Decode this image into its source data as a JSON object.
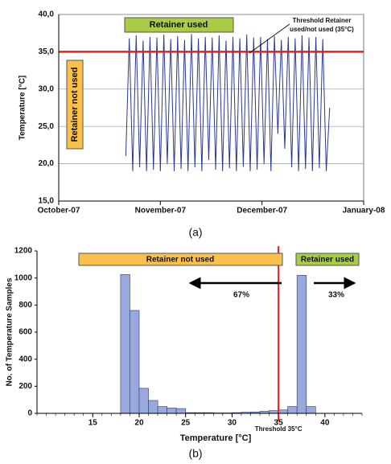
{
  "chart_data": [
    {
      "type": "line",
      "caption": "(a)",
      "ylabel": "Temperature [°C]",
      "xlim": [
        0,
        3
      ],
      "xticks": [
        {
          "value": 0,
          "label": "October-07"
        },
        {
          "value": 1,
          "label": "November-07"
        },
        {
          "value": 2,
          "label": "December-07"
        },
        {
          "value": 3,
          "label": "January-08"
        }
      ],
      "ylim": [
        15,
        40
      ],
      "yticks": [
        {
          "value": 15,
          "label": "15,0"
        },
        {
          "value": 20,
          "label": "20,0"
        },
        {
          "value": 25,
          "label": "25,0"
        },
        {
          "value": 30,
          "label": "30,0"
        },
        {
          "value": 35,
          "label": "35,0"
        },
        {
          "value": 40,
          "label": "40,0"
        }
      ],
      "grid": true,
      "x": [
        0.66,
        0.694,
        0.728,
        0.762,
        0.796,
        0.83,
        0.864,
        0.898,
        0.932,
        0.966,
        1.0,
        1.034,
        1.068,
        1.102,
        1.136,
        1.17,
        1.204,
        1.238,
        1.272,
        1.306,
        1.34,
        1.374,
        1.408,
        1.442,
        1.476,
        1.51,
        1.544,
        1.578,
        1.612,
        1.646,
        1.68,
        1.714,
        1.748,
        1.782,
        1.816,
        1.85,
        1.884,
        1.918,
        1.952,
        1.986,
        2.02,
        2.054,
        2.088,
        2.122,
        2.156,
        2.19,
        2.224,
        2.258,
        2.292,
        2.326,
        2.36,
        2.394,
        2.428,
        2.462,
        2.496,
        2.53,
        2.564,
        2.598,
        2.632,
        2.666
      ],
      "series": [
        {
          "color": "#2b3990",
          "values": [
            21,
            36.8,
            19,
            37.2,
            19.5,
            36.5,
            19,
            37,
            19.2,
            36.9,
            19,
            37.3,
            20,
            36.7,
            19,
            37.1,
            19.3,
            36.6,
            19,
            37.4,
            19.5,
            36.8,
            19,
            37,
            20.5,
            36.9,
            19.2,
            37.2,
            19,
            36.5,
            19.4,
            37,
            19,
            36.8,
            19.6,
            37.3,
            19,
            36.9,
            19.2,
            37,
            20,
            36.7,
            19,
            37.1,
            24,
            36.6,
            22,
            37,
            19.5,
            36.8,
            19,
            37.2,
            19.3,
            36.9,
            19,
            37,
            19.4,
            36.7,
            19,
            27.5
          ]
        }
      ],
      "threshold": {
        "value": 35,
        "label": [
          "Threshold Retainer",
          "used/not used (35°C)"
        ],
        "color": "#ee1c1c"
      },
      "annotations": [
        {
          "text": "Retainer used",
          "color": "#a8cc45"
        },
        {
          "text": "Retainer not used",
          "color": "#f9c04c"
        }
      ]
    },
    {
      "type": "histogram",
      "caption": "(b)",
      "xlabel": "Temperature [°C]",
      "ylabel": "No. of Temperature Samples",
      "xlim": [
        9,
        44
      ],
      "xticks": [
        15,
        20,
        25,
        30,
        35,
        40
      ],
      "xminor": 1,
      "ylim": [
        0,
        1200
      ],
      "yticks": [
        0,
        200,
        400,
        600,
        800,
        1000,
        1200
      ],
      "bins": [
        18,
        19,
        20,
        21,
        22,
        23,
        24,
        25,
        26,
        27,
        28,
        29,
        30,
        31,
        32,
        33,
        34,
        35,
        36,
        37,
        38,
        39
      ],
      "values": [
        1025,
        760,
        185,
        95,
        50,
        40,
        35,
        5,
        5,
        5,
        3,
        3,
        5,
        8,
        10,
        15,
        20,
        25,
        50,
        1020,
        50
      ],
      "color": "#9aa9dc",
      "threshold": {
        "value": 35,
        "label": "Threshold 35°C",
        "color": "#ee1c1c"
      },
      "annotations": [
        {
          "text": "Retainer not used",
          "color": "#f9c04c"
        },
        {
          "text": "Retainer used",
          "color": "#a8cc45"
        }
      ],
      "percent_labels": [
        "67%",
        "33%"
      ]
    }
  ]
}
